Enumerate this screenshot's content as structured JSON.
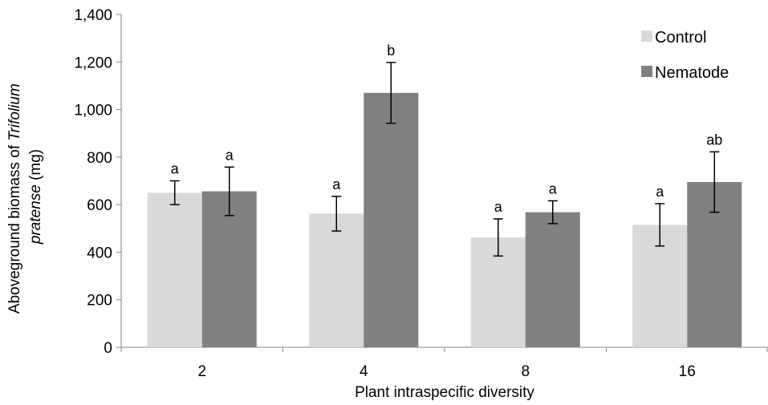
{
  "chart_data": {
    "type": "bar",
    "categories": [
      "2",
      "4",
      "8",
      "16"
    ],
    "series": [
      {
        "name": "Control",
        "color": "#d9d9d9",
        "values": [
          650,
          562,
          462,
          515
        ],
        "errors": [
          50,
          73,
          78,
          89
        ],
        "letters": [
          "a",
          "a",
          "a",
          "a"
        ]
      },
      {
        "name": "Nematode",
        "color": "#808080",
        "values": [
          656,
          1070,
          568,
          695
        ],
        "errors": [
          102,
          128,
          48,
          127
        ],
        "letters": [
          "a",
          "b",
          "a",
          "ab"
        ]
      }
    ],
    "xlabel": "Plant intraspecific diversity",
    "ylabel_prefix": "Aboveground biomass of ",
    "ylabel_species": "Trifolium pratense",
    "ylabel_unit": " (mg)",
    "ylim": [
      0,
      1400
    ],
    "yticks": [
      "0",
      "200",
      "400",
      "600",
      "800",
      "1,000",
      "1,200",
      "1,400"
    ],
    "grid": false,
    "legend_position": "top-right"
  }
}
